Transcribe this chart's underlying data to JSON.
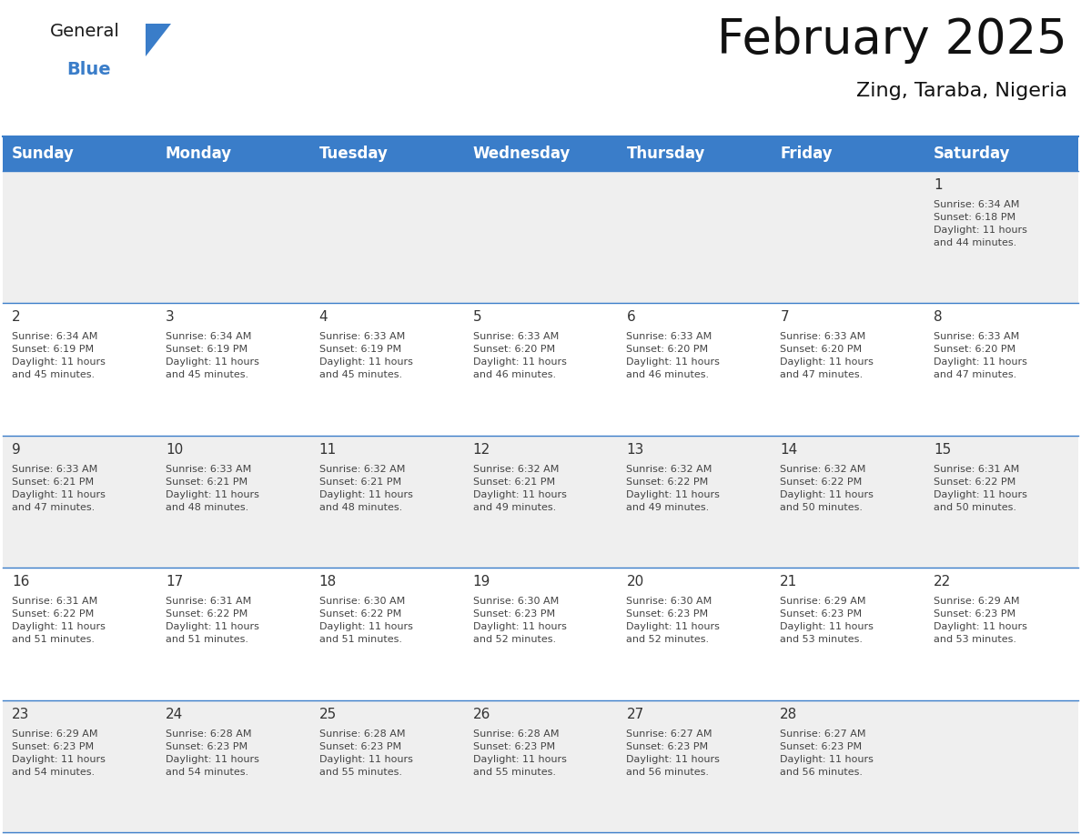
{
  "title": "February 2025",
  "subtitle": "Zing, Taraba, Nigeria",
  "header_bg": "#3A7DC9",
  "header_text_color": "#FFFFFF",
  "day_names": [
    "Sunday",
    "Monday",
    "Tuesday",
    "Wednesday",
    "Thursday",
    "Friday",
    "Saturday"
  ],
  "row_bg_even": "#EFEFEF",
  "row_bg_odd": "#FFFFFF",
  "cell_text_color": "#444444",
  "day_number_color": "#333333",
  "grid_line_color": "#3A7DC9",
  "title_fontsize": 38,
  "subtitle_fontsize": 16,
  "day_header_fontsize": 12,
  "day_num_fontsize": 11,
  "cell_text_fontsize": 8,
  "calendar": [
    [
      null,
      null,
      null,
      null,
      null,
      null,
      {
        "day": 1,
        "sunrise": "6:34 AM",
        "sunset": "6:18 PM",
        "daylight": "11 hours\nand 44 minutes."
      }
    ],
    [
      {
        "day": 2,
        "sunrise": "6:34 AM",
        "sunset": "6:19 PM",
        "daylight": "11 hours\nand 45 minutes."
      },
      {
        "day": 3,
        "sunrise": "6:34 AM",
        "sunset": "6:19 PM",
        "daylight": "11 hours\nand 45 minutes."
      },
      {
        "day": 4,
        "sunrise": "6:33 AM",
        "sunset": "6:19 PM",
        "daylight": "11 hours\nand 45 minutes."
      },
      {
        "day": 5,
        "sunrise": "6:33 AM",
        "sunset": "6:20 PM",
        "daylight": "11 hours\nand 46 minutes."
      },
      {
        "day": 6,
        "sunrise": "6:33 AM",
        "sunset": "6:20 PM",
        "daylight": "11 hours\nand 46 minutes."
      },
      {
        "day": 7,
        "sunrise": "6:33 AM",
        "sunset": "6:20 PM",
        "daylight": "11 hours\nand 47 minutes."
      },
      {
        "day": 8,
        "sunrise": "6:33 AM",
        "sunset": "6:20 PM",
        "daylight": "11 hours\nand 47 minutes."
      }
    ],
    [
      {
        "day": 9,
        "sunrise": "6:33 AM",
        "sunset": "6:21 PM",
        "daylight": "11 hours\nand 47 minutes."
      },
      {
        "day": 10,
        "sunrise": "6:33 AM",
        "sunset": "6:21 PM",
        "daylight": "11 hours\nand 48 minutes."
      },
      {
        "day": 11,
        "sunrise": "6:32 AM",
        "sunset": "6:21 PM",
        "daylight": "11 hours\nand 48 minutes."
      },
      {
        "day": 12,
        "sunrise": "6:32 AM",
        "sunset": "6:21 PM",
        "daylight": "11 hours\nand 49 minutes."
      },
      {
        "day": 13,
        "sunrise": "6:32 AM",
        "sunset": "6:22 PM",
        "daylight": "11 hours\nand 49 minutes."
      },
      {
        "day": 14,
        "sunrise": "6:32 AM",
        "sunset": "6:22 PM",
        "daylight": "11 hours\nand 50 minutes."
      },
      {
        "day": 15,
        "sunrise": "6:31 AM",
        "sunset": "6:22 PM",
        "daylight": "11 hours\nand 50 minutes."
      }
    ],
    [
      {
        "day": 16,
        "sunrise": "6:31 AM",
        "sunset": "6:22 PM",
        "daylight": "11 hours\nand 51 minutes."
      },
      {
        "day": 17,
        "sunrise": "6:31 AM",
        "sunset": "6:22 PM",
        "daylight": "11 hours\nand 51 minutes."
      },
      {
        "day": 18,
        "sunrise": "6:30 AM",
        "sunset": "6:22 PM",
        "daylight": "11 hours\nand 51 minutes."
      },
      {
        "day": 19,
        "sunrise": "6:30 AM",
        "sunset": "6:23 PM",
        "daylight": "11 hours\nand 52 minutes."
      },
      {
        "day": 20,
        "sunrise": "6:30 AM",
        "sunset": "6:23 PM",
        "daylight": "11 hours\nand 52 minutes."
      },
      {
        "day": 21,
        "sunrise": "6:29 AM",
        "sunset": "6:23 PM",
        "daylight": "11 hours\nand 53 minutes."
      },
      {
        "day": 22,
        "sunrise": "6:29 AM",
        "sunset": "6:23 PM",
        "daylight": "11 hours\nand 53 minutes."
      }
    ],
    [
      {
        "day": 23,
        "sunrise": "6:29 AM",
        "sunset": "6:23 PM",
        "daylight": "11 hours\nand 54 minutes."
      },
      {
        "day": 24,
        "sunrise": "6:28 AM",
        "sunset": "6:23 PM",
        "daylight": "11 hours\nand 54 minutes."
      },
      {
        "day": 25,
        "sunrise": "6:28 AM",
        "sunset": "6:23 PM",
        "daylight": "11 hours\nand 55 minutes."
      },
      {
        "day": 26,
        "sunrise": "6:28 AM",
        "sunset": "6:23 PM",
        "daylight": "11 hours\nand 55 minutes."
      },
      {
        "day": 27,
        "sunrise": "6:27 AM",
        "sunset": "6:23 PM",
        "daylight": "11 hours\nand 56 minutes."
      },
      {
        "day": 28,
        "sunrise": "6:27 AM",
        "sunset": "6:23 PM",
        "daylight": "11 hours\nand 56 minutes."
      },
      null
    ]
  ]
}
